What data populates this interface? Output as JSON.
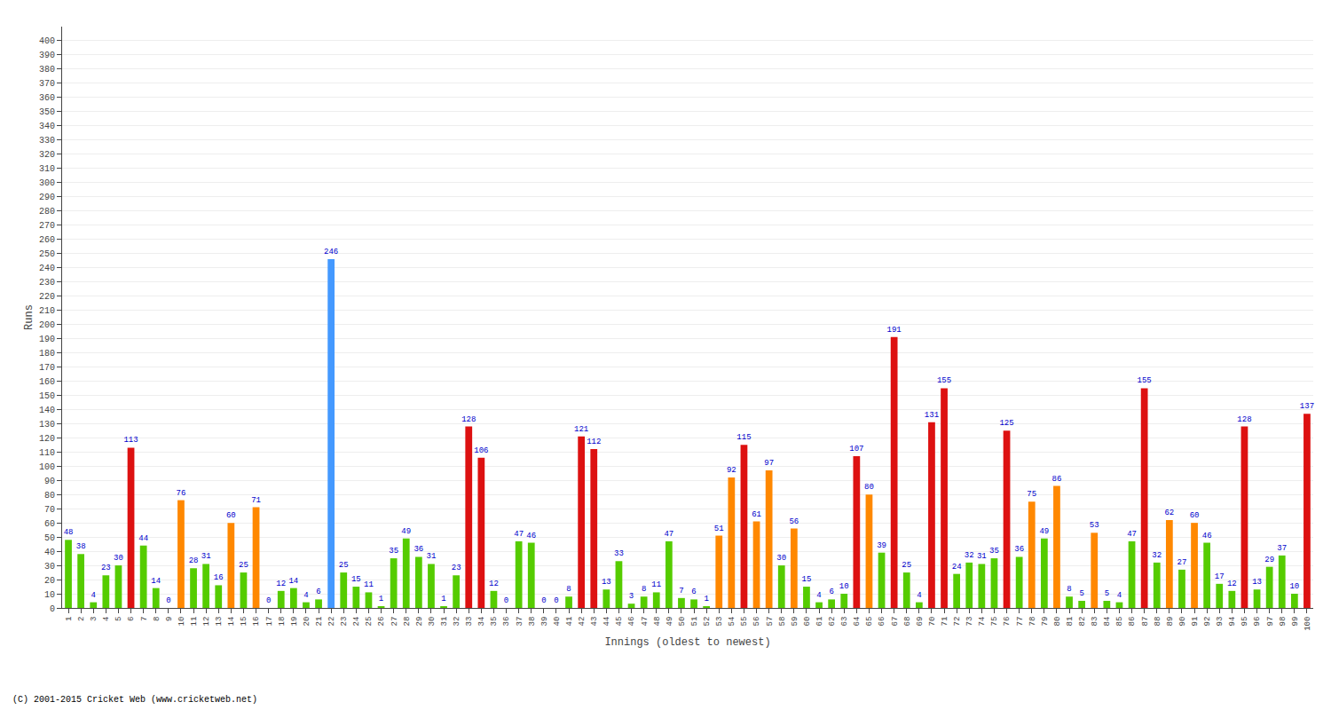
{
  "chart_data": {
    "type": "bar",
    "xlabel": "Innings (oldest to newest)",
    "ylabel": "Runs",
    "categories": [
      "1",
      "2",
      "3",
      "4",
      "5",
      "6",
      "7",
      "8",
      "9",
      "10",
      "11",
      "12",
      "13",
      "14",
      "15",
      "16",
      "17",
      "18",
      "19",
      "20",
      "21",
      "22",
      "23",
      "24",
      "25",
      "26",
      "27",
      "28",
      "29",
      "30",
      "31",
      "32",
      "33",
      "34",
      "35",
      "36",
      "37",
      "38",
      "39",
      "40",
      "41",
      "42",
      "43",
      "44",
      "45",
      "46",
      "47",
      "48",
      "49",
      "50",
      "51",
      "52",
      "53",
      "54",
      "55",
      "56",
      "57",
      "58",
      "59",
      "60",
      "61",
      "62",
      "63",
      "64",
      "65",
      "66",
      "67",
      "68",
      "69",
      "70",
      "71",
      "72",
      "73",
      "74",
      "75",
      "76",
      "77",
      "78",
      "79",
      "80",
      "81",
      "82",
      "83",
      "84",
      "85",
      "86",
      "87",
      "88",
      "89",
      "90",
      "91",
      "92",
      "93",
      "94",
      "95",
      "96",
      "97",
      "98",
      "99",
      "100"
    ],
    "values": [
      48,
      38,
      4,
      23,
      30,
      113,
      44,
      14,
      0,
      76,
      28,
      31,
      16,
      60,
      25,
      71,
      0,
      12,
      14,
      4,
      6,
      246,
      25,
      15,
      11,
      1,
      35,
      49,
      36,
      31,
      1,
      23,
      128,
      106,
      12,
      0,
      47,
      46,
      0,
      0,
      8,
      121,
      112,
      13,
      33,
      3,
      8,
      11,
      47,
      7,
      6,
      1,
      51,
      92,
      115,
      61,
      97,
      30,
      56,
      15,
      4,
      6,
      10,
      107,
      80,
      39,
      191,
      25,
      4,
      131,
      155,
      24,
      32,
      31,
      35,
      125,
      36,
      75,
      49,
      86,
      8,
      5,
      53,
      5,
      4,
      47,
      155,
      32,
      62,
      27,
      60,
      46,
      17,
      12,
      128,
      13,
      29,
      37,
      10,
      137
    ],
    "colors": [
      "#55cc00",
      "#55cc00",
      "#55cc00",
      "#55cc00",
      "#55cc00",
      "#dd1111",
      "#55cc00",
      "#55cc00",
      "#55cc00",
      "#ff8800",
      "#55cc00",
      "#55cc00",
      "#55cc00",
      "#ff8800",
      "#55cc00",
      "#ff8800",
      "#55cc00",
      "#55cc00",
      "#55cc00",
      "#55cc00",
      "#55cc00",
      "#4499ff",
      "#55cc00",
      "#55cc00",
      "#55cc00",
      "#55cc00",
      "#55cc00",
      "#55cc00",
      "#55cc00",
      "#55cc00",
      "#55cc00",
      "#55cc00",
      "#dd1111",
      "#dd1111",
      "#55cc00",
      "#55cc00",
      "#55cc00",
      "#55cc00",
      "#55cc00",
      "#55cc00",
      "#55cc00",
      "#dd1111",
      "#dd1111",
      "#55cc00",
      "#55cc00",
      "#55cc00",
      "#55cc00",
      "#55cc00",
      "#55cc00",
      "#55cc00",
      "#55cc00",
      "#55cc00",
      "#ff8800",
      "#ff8800",
      "#dd1111",
      "#ff8800",
      "#ff8800",
      "#55cc00",
      "#ff8800",
      "#55cc00",
      "#55cc00",
      "#55cc00",
      "#55cc00",
      "#dd1111",
      "#ff8800",
      "#55cc00",
      "#dd1111",
      "#55cc00",
      "#55cc00",
      "#dd1111",
      "#dd1111",
      "#55cc00",
      "#55cc00",
      "#55cc00",
      "#55cc00",
      "#dd1111",
      "#55cc00",
      "#ff8800",
      "#55cc00",
      "#ff8800",
      "#55cc00",
      "#55cc00",
      "#ff8800",
      "#55cc00",
      "#55cc00",
      "#55cc00",
      "#dd1111",
      "#55cc00",
      "#ff8800",
      "#55cc00",
      "#ff8800",
      "#55cc00",
      "#55cc00",
      "#55cc00",
      "#dd1111",
      "#55cc00",
      "#55cc00",
      "#55cc00",
      "#55cc00",
      "#dd1111"
    ],
    "ylim": [
      0,
      410
    ],
    "yticks": [
      0,
      10,
      20,
      30,
      40,
      50,
      60,
      70,
      80,
      90,
      100,
      110,
      120,
      130,
      140,
      150,
      160,
      170,
      180,
      190,
      200,
      210,
      220,
      230,
      240,
      250,
      260,
      270,
      280,
      290,
      300,
      310,
      320,
      330,
      340,
      350,
      360,
      370,
      380,
      390,
      400
    ],
    "grid": true,
    "data_labels": true,
    "annotations": [
      "(C) 2001-2015 Cricket Web (www.cricketweb.net)"
    ]
  }
}
